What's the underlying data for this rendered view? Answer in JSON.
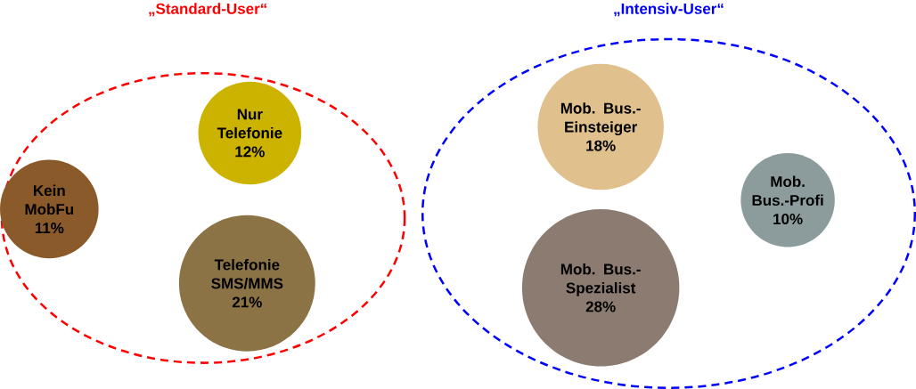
{
  "chart_data": {
    "type": "other",
    "categories": [
      "Kein MobFu",
      "Nur Telefonie",
      "Telefonie SMS/MMS",
      "Mob. Bus.-Einsteiger",
      "Mob. Bus.-Spezialist",
      "Mob. Bus.-Profi"
    ],
    "values": [
      11,
      12,
      21,
      18,
      28,
      10
    ],
    "value_labels": [
      "11%",
      "12%",
      "21%",
      "18%",
      "28%",
      "10%"
    ],
    "colors": [
      "#8b5a2b",
      "#ccb300",
      "#8b7345",
      "#e0c08c",
      "#8c7b70",
      "#8c9c9c"
    ],
    "annotations": [
      "„Standard-User“",
      "„Intensiv-User“"
    ]
  }
}
